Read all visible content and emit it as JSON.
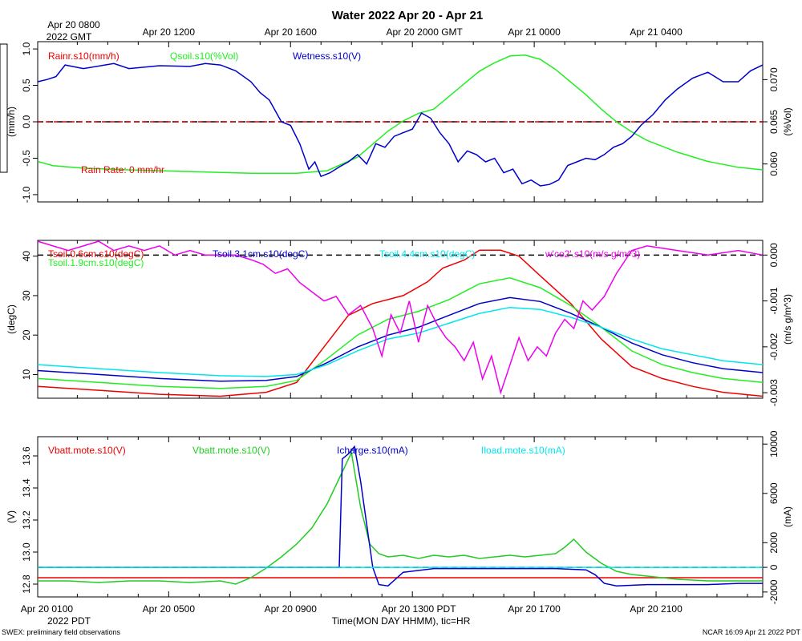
{
  "title": "Water 2022 Apr 20 - Apr 21",
  "top_axis": {
    "label_first_line1": "Apr 20 0800",
    "label_first_line2": "2022 GMT",
    "labels": [
      "Apr 20 1200",
      "Apr 20 1600",
      "Apr 20 2000 GMT",
      "Apr 21 0000",
      "Apr 21 0400"
    ]
  },
  "bottom_axis": {
    "labels": [
      "Apr 20 0100",
      "Apr 20 0500",
      "Apr 20 0900",
      "Apr 20 1300 PDT",
      "Apr 20 1700",
      "Apr 20 2100"
    ],
    "year_label": "2022 PDT",
    "xlabel": "Time(MON DAY HHMM), tic=HR"
  },
  "footer": {
    "left": "SWEX: preliminary field observations",
    "right": "NCAR 16:09 Apr 21 2022 PDT"
  },
  "colors": {
    "red": "#ee0000",
    "green": "#22ee22",
    "blue": "#0000cc",
    "cyan": "#00e5ee",
    "magenta": "#ee00ee",
    "panel_green": "#22cc22"
  },
  "chart_data": [
    {
      "type": "line",
      "panel": "top",
      "x_hours_pdt": [
        0,
        23.8
      ],
      "left_axis": {
        "label": "(mm/h)",
        "ylim": [
          -1.1,
          1.1
        ],
        "ticks": [
          "-1.0",
          "-0.5",
          "0.0",
          "0.5",
          "1.0"
        ],
        "tick_values": [
          -1.0,
          -0.5,
          0.0,
          0.5,
          1.0
        ]
      },
      "right_axis": {
        "label": "(%Vol)",
        "ylim": [
          0.0555,
          0.0745
        ],
        "ticks": [
          "0.060",
          "0.065",
          "0.070"
        ],
        "tick_values": [
          0.06,
          0.065,
          0.07
        ]
      },
      "legend": [
        "Rainr.s10(mm/h)",
        "Qsoil.s10(%Vol)",
        "Wetness.s10(V)"
      ],
      "annotation": "Rain Rate: 0 mm/hr",
      "series": [
        {
          "name": "Rainr.s10(mm/h)",
          "axis": "left",
          "color": "red",
          "dashed_reference": true,
          "x": [
            0,
            23.8
          ],
          "y": [
            0.0,
            0.0
          ]
        },
        {
          "name": "Qsoil.s10(%Vol)",
          "axis": "right",
          "color": "green",
          "x": [
            0,
            0.5,
            1.5,
            3,
            5,
            7,
            8.5,
            9.5,
            10.5,
            11.5,
            12,
            12.5,
            13,
            13.5,
            14,
            14.5,
            15,
            15.5,
            16,
            16.5,
            17,
            17.5,
            18,
            18.5,
            19,
            19.5,
            20,
            21,
            22,
            23,
            23.8
          ],
          "y": [
            0.0603,
            0.0598,
            0.0595,
            0.0593,
            0.0591,
            0.0589,
            0.0589,
            0.0592,
            0.0608,
            0.0639,
            0.0651,
            0.066,
            0.0665,
            0.068,
            0.0695,
            0.071,
            0.072,
            0.0728,
            0.0729,
            0.0724,
            0.0712,
            0.0697,
            0.0682,
            0.0665,
            0.065,
            0.0638,
            0.0628,
            0.0614,
            0.0603,
            0.0596,
            0.0593
          ]
        },
        {
          "name": "Wetness.s10(V)",
          "axis": "left",
          "color": "blue",
          "x": [
            0,
            0.3,
            0.6,
            0.9,
            1.5,
            2.5,
            3,
            4,
            5,
            5.5,
            6,
            6.5,
            7,
            7.3,
            7.6,
            8,
            8.3,
            8.6,
            8.9,
            9.1,
            9.3,
            9.6,
            9.9,
            10.2,
            10.5,
            10.8,
            11.1,
            11.4,
            11.7,
            12,
            12.3,
            12.6,
            12.9,
            13.2,
            13.5,
            13.8,
            14.1,
            14.4,
            14.7,
            15,
            15.3,
            15.6,
            15.9,
            16.2,
            16.5,
            16.8,
            17.1,
            17.4,
            17.7,
            18,
            18.3,
            18.6,
            18.9,
            19.2,
            19.5,
            19.8,
            20.2,
            20.6,
            21,
            21.5,
            22,
            22.5,
            23,
            23.4,
            23.8
          ],
          "y": [
            0.55,
            0.58,
            0.62,
            0.78,
            0.73,
            0.8,
            0.73,
            0.77,
            0.76,
            0.8,
            0.78,
            0.7,
            0.55,
            0.4,
            0.3,
            0.0,
            -0.05,
            -0.3,
            -0.65,
            -0.55,
            -0.75,
            -0.7,
            -0.62,
            -0.55,
            -0.45,
            -0.58,
            -0.3,
            -0.35,
            -0.2,
            -0.15,
            -0.1,
            0.12,
            0.05,
            -0.15,
            -0.3,
            -0.55,
            -0.4,
            -0.45,
            -0.55,
            -0.5,
            -0.7,
            -0.65,
            -0.85,
            -0.8,
            -0.88,
            -0.86,
            -0.8,
            -0.6,
            -0.55,
            -0.5,
            -0.52,
            -0.45,
            -0.35,
            -0.3,
            -0.2,
            -0.05,
            0.1,
            0.3,
            0.45,
            0.6,
            0.68,
            0.55,
            0.55,
            0.7,
            0.78
          ]
        }
      ]
    },
    {
      "type": "line",
      "panel": "middle",
      "x_hours_pdt": [
        0,
        23.8
      ],
      "left_axis": {
        "label": "(degC)",
        "ylim": [
          4,
          44
        ],
        "ticks": [
          "10",
          "20",
          "30",
          "40"
        ],
        "tick_values": [
          10,
          20,
          30,
          40
        ]
      },
      "right_axis": {
        "label": "(m/s g/m^3)",
        "ylim": [
          -0.00312,
          0.00032
        ],
        "ticks": [
          "-0.003",
          "-0.002",
          "-0.001",
          "0.000"
        ],
        "tick_values": [
          -0.003,
          -0.002,
          -0.001,
          0.0
        ]
      },
      "legend": [
        "Tsoil.0.6cm.s10(degC)",
        "Tsoil.1.9cm.s10(degC)",
        "Tsoil.3.1cm.s10(degC)",
        "Tsoil.4.4cm.s10(degC)",
        "w'co2'.s10(m/s g/m^3)"
      ],
      "series": [
        {
          "name": "Tsoil.0.6cm.s10(degC)",
          "axis": "left",
          "color": "red",
          "x": [
            0,
            2,
            4,
            6,
            7.5,
            8.5,
            9.5,
            10.2,
            11,
            12,
            12.8,
            13.3,
            14,
            14.5,
            15.2,
            15.8,
            16.5,
            17.5,
            18.5,
            19.5,
            20.5,
            21.5,
            22.5,
            23.8
          ],
          "y": [
            7.0,
            6.0,
            5.0,
            4.5,
            5.5,
            8.0,
            18.0,
            25.0,
            28.0,
            30.0,
            33.5,
            37.0,
            39.0,
            41.5,
            41.5,
            40.0,
            35.0,
            28.0,
            19.0,
            12.0,
            9.0,
            7.0,
            5.5,
            4.5
          ]
        },
        {
          "name": "Tsoil.1.9cm.s10(degC)",
          "axis": "left",
          "color": "green",
          "x": [
            0,
            2,
            4,
            6,
            7.5,
            8.5,
            9.5,
            10.5,
            11.5,
            12.5,
            13.5,
            14.5,
            15.5,
            16.5,
            17.5,
            18.5,
            19.5,
            20.5,
            21.5,
            22.5,
            23.8
          ],
          "y": [
            9.0,
            8.0,
            7.0,
            6.5,
            7.0,
            8.5,
            14.0,
            20.0,
            24.0,
            26.0,
            29.0,
            33.0,
            34.5,
            32.0,
            27.5,
            22.0,
            16.0,
            12.5,
            10.5,
            9.0,
            8.0
          ]
        },
        {
          "name": "Tsoil.3.1cm.s10(degC)",
          "axis": "left",
          "color": "blue",
          "x": [
            0,
            2,
            4,
            6,
            7.5,
            8.5,
            9.5,
            10.5,
            11.5,
            12.5,
            13.5,
            14.5,
            15.5,
            16.5,
            17.5,
            18.5,
            19.5,
            20.5,
            21.5,
            22.5,
            23.8
          ],
          "y": [
            11.0,
            10.0,
            9.0,
            8.3,
            8.5,
            9.5,
            13.0,
            17.0,
            20.0,
            22.0,
            25.0,
            28.0,
            29.5,
            28.5,
            25.5,
            22.0,
            18.0,
            15.0,
            13.0,
            11.5,
            10.5
          ]
        },
        {
          "name": "Tsoil.4.4cm.s10(degC)",
          "axis": "left",
          "color": "cyan",
          "x": [
            0,
            2,
            4,
            6,
            7.5,
            8.5,
            9.5,
            10.5,
            11.5,
            12.5,
            13.5,
            14.5,
            15.5,
            16.5,
            17.5,
            18.5,
            19.5,
            20.5,
            21.5,
            22.5,
            23.8
          ],
          "y": [
            12.5,
            11.5,
            10.5,
            9.7,
            9.5,
            10.0,
            12.5,
            16.0,
            19.0,
            20.5,
            23.0,
            25.5,
            27.0,
            26.5,
            24.5,
            22.0,
            19.0,
            16.5,
            15.0,
            13.5,
            12.5
          ]
        },
        {
          "name": "w'co2'.s10(m/s g/m^3)",
          "axis": "right",
          "color": "magenta",
          "x": [
            0,
            0.5,
            1,
            1.5,
            2,
            2.5,
            3,
            3.5,
            4,
            4.5,
            5,
            5.5,
            6,
            6.5,
            7,
            7.4,
            7.8,
            8.2,
            8.6,
            9.0,
            9.4,
            9.8,
            10.2,
            10.6,
            11.0,
            11.3,
            11.6,
            11.9,
            12.2,
            12.5,
            12.8,
            13.1,
            13.4,
            13.7,
            14.0,
            14.3,
            14.6,
            14.9,
            15.2,
            15.5,
            15.8,
            16.1,
            16.4,
            16.7,
            17.0,
            17.3,
            17.6,
            17.9,
            18.2,
            18.6,
            19.0,
            19.5,
            20,
            21,
            22,
            23,
            23.8
          ],
          "y": [
            0.0003,
            0.0002,
            0.0001,
            0.0002,
            0.0003,
            0.0001,
            0.0002,
            0.0001,
            0.0002,
            0.0,
            0.0001,
            0.0,
            0.0,
            0.0,
            -0.0001,
            -0.0002,
            -0.0004,
            -0.0003,
            -0.0006,
            -0.0008,
            -0.001,
            -0.0009,
            -0.0013,
            -0.0011,
            -0.0016,
            -0.0022,
            -0.0013,
            -0.0017,
            -0.001,
            -0.0019,
            -0.0011,
            -0.0015,
            -0.0018,
            -0.002,
            -0.0023,
            -0.0019,
            -0.0027,
            -0.0022,
            -0.003,
            -0.0024,
            -0.0018,
            -0.0023,
            -0.002,
            -0.0022,
            -0.0017,
            -0.0014,
            -0.0016,
            -0.001,
            -0.0012,
            -0.0009,
            -0.0004,
            0.0001,
            0.0002,
            0.0001,
            0.0,
            0.0001,
            0.0
          ]
        }
      ]
    },
    {
      "type": "line",
      "panel": "bottom",
      "x_hours_pdt": [
        0,
        23.8
      ],
      "left_axis": {
        "label": "(V)",
        "ylim": [
          12.72,
          13.72
        ],
        "ticks": [
          "12.8",
          "13.0",
          "13.2",
          "13.4",
          "13.6"
        ],
        "tick_values": [
          12.8,
          13.0,
          13.2,
          13.4,
          13.6
        ]
      },
      "right_axis": {
        "label": "(mA)",
        "ylim": [
          -2400,
          10600
        ],
        "ticks": [
          "-2000",
          "0",
          "2000",
          "6000",
          "10000"
        ],
        "tick_values": [
          -2000,
          0,
          2000,
          6000,
          10000
        ]
      },
      "legend": [
        "Vbatt.mote.s10(V)",
        "Vbatt.mote.s10(V)",
        "Icharge.s10(mA)",
        "Iload.mote.s10(mA)"
      ],
      "series": [
        {
          "name": "Vbatt.mote.s10(V)",
          "axis": "left",
          "color": "red",
          "x": [
            0,
            23.8
          ],
          "y": [
            12.84,
            12.84
          ]
        },
        {
          "name": "Vbatt.mote.s10(V)",
          "axis": "left",
          "color": "green",
          "x": [
            0,
            1,
            2,
            3,
            4,
            5,
            6,
            6.5,
            7,
            7.5,
            8,
            8.5,
            9.0,
            9.5,
            10.0,
            10.3,
            10.6,
            10.9,
            11.2,
            11.5,
            12,
            12.5,
            13,
            13.5,
            14,
            14.5,
            15,
            15.5,
            16,
            16.5,
            17,
            17.3,
            17.6,
            18,
            18.5,
            19,
            19.5,
            20,
            20.5,
            21,
            22,
            23,
            23.8
          ],
          "y": [
            12.82,
            12.82,
            12.81,
            12.82,
            12.82,
            12.81,
            12.82,
            12.8,
            12.84,
            12.9,
            12.97,
            13.05,
            13.15,
            13.3,
            13.5,
            13.62,
            13.28,
            13.05,
            12.99,
            12.97,
            12.98,
            12.96,
            12.98,
            12.97,
            12.98,
            12.96,
            12.97,
            12.98,
            12.97,
            12.98,
            12.99,
            13.03,
            13.08,
            13.0,
            12.93,
            12.88,
            12.86,
            12.85,
            12.84,
            12.83,
            12.82,
            12.82,
            12.82
          ]
        },
        {
          "name": "Icharge.s10(mA)",
          "axis": "right",
          "color": "blue",
          "x": [
            0,
            9.9,
            10.0,
            10.2,
            10.4,
            10.6,
            10.8,
            11.0,
            11.2,
            11.5,
            12,
            13,
            14,
            15,
            16,
            17,
            18,
            18.3,
            18.6,
            19,
            20,
            21,
            22,
            23,
            23.8
          ],
          "y": [
            0,
            0,
            8800,
            9200,
            9800,
            7000,
            3500,
            0,
            -1400,
            -1500,
            -400,
            -100,
            -100,
            -100,
            -100,
            -100,
            -200,
            -600,
            -1300,
            -1500,
            -1400,
            -1400,
            -1400,
            -1300,
            -1300
          ]
        },
        {
          "name": "Iload.mote.s10(mA)",
          "axis": "right",
          "color": "cyan",
          "x": [
            0,
            23.8
          ],
          "y": [
            0,
            0
          ]
        }
      ]
    }
  ]
}
